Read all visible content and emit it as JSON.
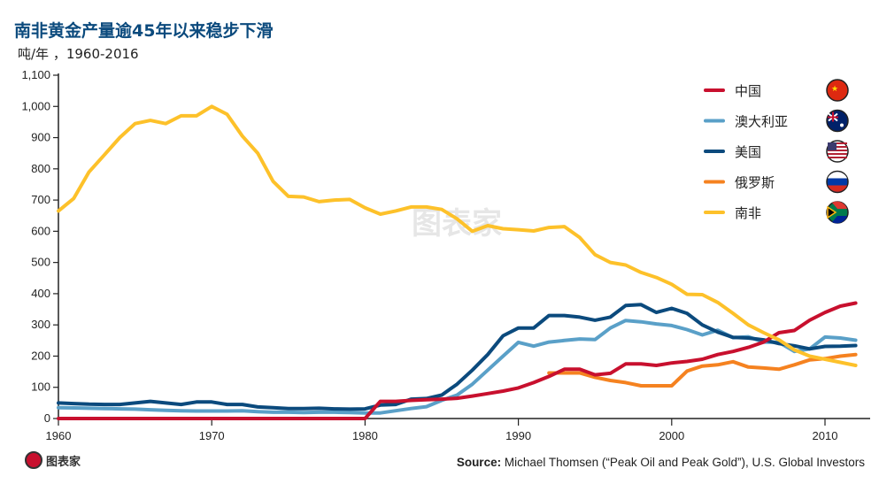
{
  "chart_data": {
    "type": "line",
    "title": "南非黄金产量逾45年以来稳步下滑",
    "subtitle": "吨/年 ，1960-2016",
    "xlabel": "",
    "ylabel": "吨/年",
    "xlim": [
      1960,
      2013
    ],
    "ylim": [
      0,
      1100
    ],
    "xticks": [
      1960,
      1970,
      1980,
      1990,
      2000,
      2010
    ],
    "yticks": [
      0,
      100,
      200,
      300,
      400,
      500,
      600,
      700,
      800,
      900,
      1000,
      1100
    ],
    "ytick_labels": [
      "0",
      "100",
      "200",
      "300",
      "400",
      "500",
      "600",
      "700",
      "800",
      "900",
      "1,000",
      "1,100"
    ],
    "grid": false,
    "legend_position": "top-right",
    "series": [
      {
        "name": "中国",
        "color": "#c8102e",
        "flag": "china-flag",
        "start": 1960,
        "values": [
          0,
          0,
          0,
          0,
          0,
          0,
          0,
          0,
          0,
          0,
          0,
          0,
          0,
          0,
          0,
          0,
          0,
          0,
          0,
          0,
          0,
          55,
          55,
          58,
          60,
          62,
          65,
          72,
          80,
          88,
          98,
          115,
          135,
          158,
          158,
          140,
          145,
          175,
          175,
          170,
          178,
          183,
          190,
          205,
          215,
          228,
          245,
          275,
          282,
          315,
          340,
          360,
          370
        ]
      },
      {
        "name": "澳大利亚",
        "color": "#5aa0c8",
        "flag": "australia-flag",
        "start": 1960,
        "values": [
          35,
          34,
          33,
          32,
          31,
          30,
          28,
          26,
          25,
          24,
          24,
          24,
          25,
          22,
          20,
          20,
          19,
          20,
          20,
          19,
          18,
          18,
          25,
          32,
          38,
          58,
          75,
          110,
          155,
          200,
          244,
          232,
          245,
          250,
          255,
          253,
          290,
          314,
          310,
          303,
          298,
          285,
          268,
          283,
          259,
          262,
          245,
          244,
          215,
          223,
          261,
          258,
          251
        ]
      },
      {
        "name": "美国",
        "color": "#0b4a7d",
        "flag": "usa-flag",
        "start": 1960,
        "values": [
          50,
          48,
          46,
          45,
          45,
          50,
          55,
          50,
          45,
          53,
          53,
          45,
          45,
          37,
          35,
          32,
          32,
          33,
          31,
          30,
          31,
          43,
          45,
          62,
          64,
          75,
          110,
          155,
          205,
          265,
          290,
          290,
          330,
          330,
          325,
          315,
          325,
          362,
          365,
          340,
          353,
          337,
          300,
          277,
          260,
          258,
          252,
          240,
          233,
          223,
          231,
          232,
          234
        ]
      },
      {
        "name": "俄罗斯",
        "color": "#f58220",
        "flag": "russia-flag",
        "start": 1992,
        "values": [
          146,
          146,
          146,
          132,
          122,
          115,
          105,
          105,
          105,
          152,
          168,
          172,
          182,
          165,
          162,
          158,
          172,
          188,
          192,
          200,
          205
        ]
      },
      {
        "name": "南非",
        "color": "#fdc12a",
        "flag": "south-africa-flag",
        "start": 1960,
        "values": [
          665,
          705,
          790,
          845,
          900,
          945,
          955,
          945,
          970,
          970,
          1000,
          975,
          905,
          850,
          760,
          712,
          710,
          695,
          700,
          702,
          675,
          655,
          665,
          678,
          678,
          670,
          640,
          600,
          618,
          608,
          605,
          601,
          612,
          615,
          580,
          525,
          500,
          492,
          468,
          452,
          430,
          398,
          397,
          372,
          337,
          300,
          275,
          252,
          220,
          200,
          190,
          180,
          170
        ]
      }
    ]
  },
  "source": {
    "label": "Source:",
    "text": " Michael Thomsen (“Peak Oil and Peak Gold”), U.S. Global Investors"
  },
  "logo": {
    "text": "图表家"
  },
  "watermark": {
    "text": "图表家"
  }
}
